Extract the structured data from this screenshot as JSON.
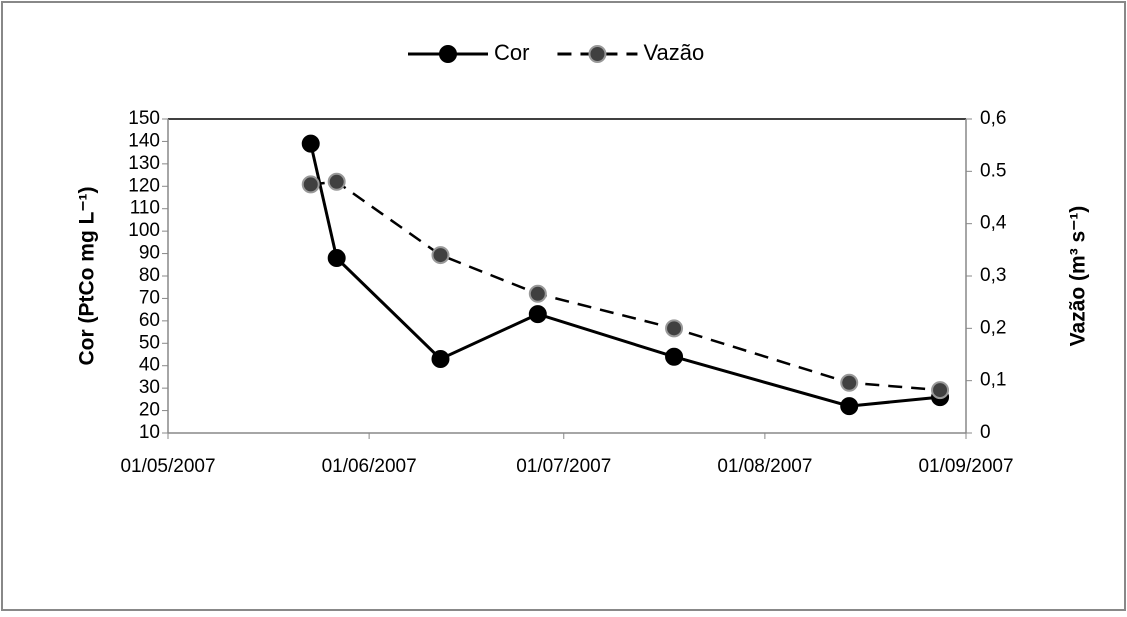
{
  "chart_data": {
    "type": "line",
    "legend": {
      "position": "top"
    },
    "y_label": "Cor (PtCo mg L⁻¹)",
    "y2_label": "Vazão (m³ s⁻¹)",
    "x": [
      "2007-05-23",
      "2007-05-27",
      "2007-06-12",
      "2007-06-27",
      "2007-07-18",
      "2007-08-14",
      "2007-08-28"
    ],
    "xlim": [
      "2007-05-01",
      "2007-09-01"
    ],
    "xticks": [
      {
        "value": "2007-05-01",
        "label": "01/05/2007"
      },
      {
        "value": "2007-06-01",
        "label": "01/06/2007"
      },
      {
        "value": "2007-07-01",
        "label": "01/07/2007"
      },
      {
        "value": "2007-08-01",
        "label": "01/08/2007"
      },
      {
        "value": "2007-09-01",
        "label": "01/09/2007"
      }
    ],
    "ylim": [
      10,
      150
    ],
    "yticks": [
      10,
      20,
      30,
      40,
      50,
      60,
      70,
      80,
      90,
      100,
      110,
      120,
      130,
      140,
      150
    ],
    "y2lim": [
      0,
      0.6
    ],
    "y2ticks": [
      0,
      {
        "value": 0.1,
        "label": "0,1"
      },
      {
        "value": 0.2,
        "label": "0,2"
      },
      {
        "value": 0.3,
        "label": "0,3"
      },
      {
        "value": 0.4,
        "label": "0,4"
      },
      0.5,
      {
        "value": 0.6,
        "label": "0,6"
      }
    ],
    "series": [
      {
        "name": "Cor",
        "color": "#000000",
        "dash": "solid",
        "values": [
          139,
          88,
          43,
          63,
          44,
          22,
          26
        ]
      },
      {
        "name": "Vazão",
        "color": "#000000",
        "dash": "dashed",
        "marker_color": "#404040",
        "axis": "y2",
        "values": [
          0.475,
          0.48,
          0.34,
          0.266,
          0.2,
          0.096,
          0.082
        ]
      }
    ]
  }
}
